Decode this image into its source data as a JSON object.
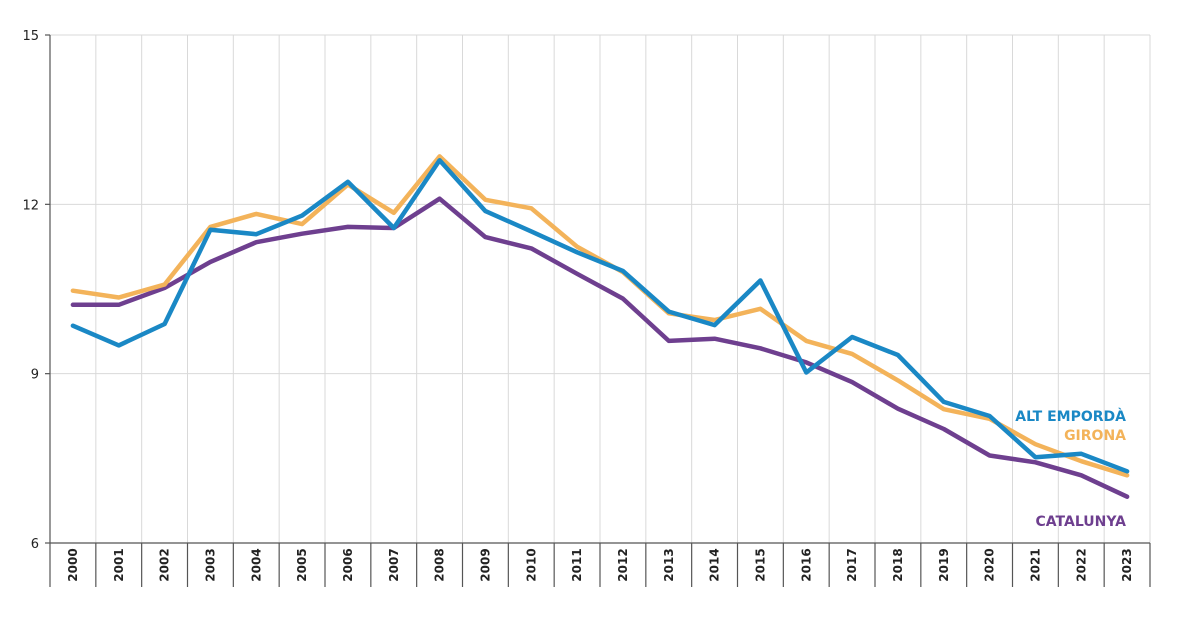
{
  "chart_data": {
    "type": "line",
    "title": "",
    "xlabel": "",
    "ylabel": "",
    "x": [
      "2000",
      "2001",
      "2002",
      "2003",
      "2004",
      "2005",
      "2006",
      "2007",
      "2008",
      "2009",
      "2010",
      "2011",
      "2012",
      "2013",
      "2014",
      "2015",
      "2016",
      "2017",
      "2018",
      "2019",
      "2020",
      "2021",
      "2022",
      "2023"
    ],
    "ylim": [
      6,
      15
    ],
    "yticks": [
      6,
      9,
      12,
      15
    ],
    "yticklabels": [
      "6",
      "9",
      "12",
      "15"
    ],
    "grid": true,
    "legend": "end-of-line labels, right",
    "series": [
      {
        "name": "CATALUNYA",
        "color": "#6e3f8f",
        "values": [
          10.22,
          10.22,
          10.52,
          10.98,
          11.33,
          11.48,
          11.6,
          11.58,
          12.1,
          11.42,
          11.22,
          10.77,
          10.33,
          9.58,
          9.62,
          9.45,
          9.2,
          8.85,
          8.38,
          8.02,
          7.55,
          7.43,
          7.2,
          6.82
        ]
      },
      {
        "name": "GIRONA",
        "color": "#f3b35a",
        "values": [
          10.47,
          10.35,
          10.58,
          11.6,
          11.83,
          11.65,
          12.35,
          11.85,
          12.85,
          12.08,
          11.93,
          11.25,
          10.8,
          10.07,
          9.95,
          10.15,
          9.58,
          9.35,
          8.88,
          8.37,
          8.2,
          7.75,
          7.45,
          7.2
        ]
      },
      {
        "name": "ALT EMPORDÀ",
        "color": "#1a88c5",
        "values": [
          9.85,
          9.5,
          9.88,
          11.55,
          11.47,
          11.8,
          12.4,
          11.58,
          12.78,
          11.88,
          11.52,
          11.15,
          10.82,
          10.1,
          9.86,
          10.65,
          9.02,
          9.65,
          9.33,
          8.5,
          8.25,
          7.52,
          7.58,
          7.27
        ]
      }
    ]
  }
}
